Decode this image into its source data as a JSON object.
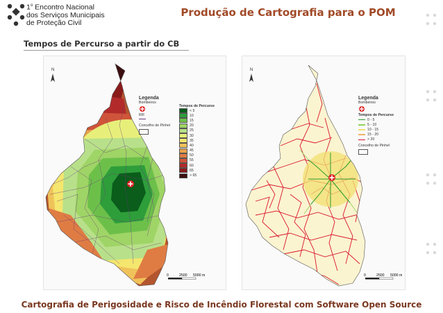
{
  "brand": {
    "line1_prefix": "1",
    "line1_sup": "o",
    "line1_rest": "Encontro Nacional",
    "line2": "dos Serviços Municipais",
    "line3": "de Proteção Civil"
  },
  "header": {
    "title": "Produção de Cartografia para o POM"
  },
  "section": {
    "subtitle": "Tempos de Percurso a partir do CB"
  },
  "map_left": {
    "north": "N",
    "legend_title": "Legenda",
    "legend_items": [
      "Bombeiros",
      "RIF",
      "Concelho de Pinhel"
    ],
    "tempos_title": "Tempos de Percurso",
    "classes": [
      "< 5",
      "10",
      "15",
      "20",
      "25",
      "30",
      "35",
      "40",
      "45",
      "50",
      "55",
      "60",
      "65",
      "> 65"
    ],
    "class_colors": [
      "#0a5d1b",
      "#2e9e3a",
      "#6cc04a",
      "#9fd466",
      "#b8e08a",
      "#e7ef7a",
      "#f4e66e",
      "#f0c25a",
      "#e8a24e",
      "#df7c44",
      "#cf543a",
      "#b22b2a",
      "#8a1b1b",
      "#3b0f10"
    ],
    "scale": [
      "0",
      "2500",
      "5000 m"
    ]
  },
  "map_right": {
    "north": "N",
    "legend_title": "Legenda",
    "legend_items": [
      "Bombeiros",
      "Concelho de Pinhel"
    ],
    "tempos_title": "Tempos de Percurso",
    "classes": [
      "0 - 5",
      "5 - 10",
      "10 - 15",
      "15 - 20",
      "> 20"
    ],
    "class_colors": [
      "#2b9b2b",
      "#8ed35a",
      "#f2e071",
      "#f0b06a",
      "#d9142a"
    ],
    "scale": [
      "0",
      "2500",
      "5000 m"
    ]
  },
  "footer": {
    "text": "Cartografia de Perigosidade e Risco de Incêndio Florestal com Software Open Source"
  }
}
